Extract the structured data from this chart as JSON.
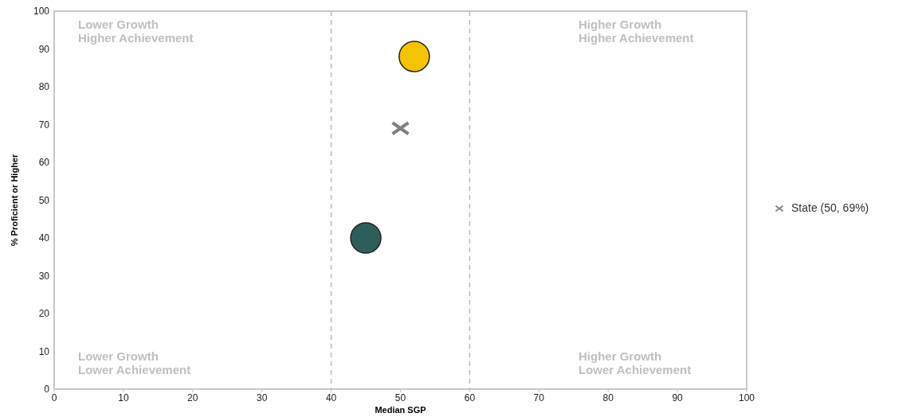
{
  "chart_data": {
    "type": "scatter",
    "xlabel": "Median SGP",
    "ylabel": "% Proficient or Higher",
    "xlim": [
      0,
      100
    ],
    "ylim": [
      0,
      100
    ],
    "xticks": [
      0,
      10,
      20,
      30,
      40,
      50,
      60,
      70,
      80,
      90,
      100
    ],
    "yticks": [
      0,
      10,
      20,
      30,
      40,
      50,
      60,
      70,
      80,
      90,
      100
    ],
    "legend": "right",
    "grid": false,
    "series": [
      {
        "color": "#f5c400",
        "x": [
          52
        ],
        "values": [
          88
        ],
        "marker": "circle"
      },
      {
        "color": "#2e5e5a",
        "x": [
          45
        ],
        "values": [
          40
        ],
        "marker": "circle"
      },
      {
        "name": "State (50, 69%)",
        "color": "#808080",
        "x": [
          50
        ],
        "values": [
          69
        ],
        "marker": "cross"
      }
    ],
    "ref_lines": [
      {
        "axis": "x",
        "value": 40,
        "line_style": "dashed",
        "color": "#bbbbbb"
      },
      {
        "axis": "x",
        "value": 60,
        "line_style": "dashed",
        "color": "#bbbbbb"
      }
    ],
    "annotations": [
      "Lower Growth\nHigher Achievement",
      "Higher Growth\nHigher Achievement",
      "Lower Growth\nLower Achievement",
      "Higher Growth\nLower Achievement"
    ]
  }
}
